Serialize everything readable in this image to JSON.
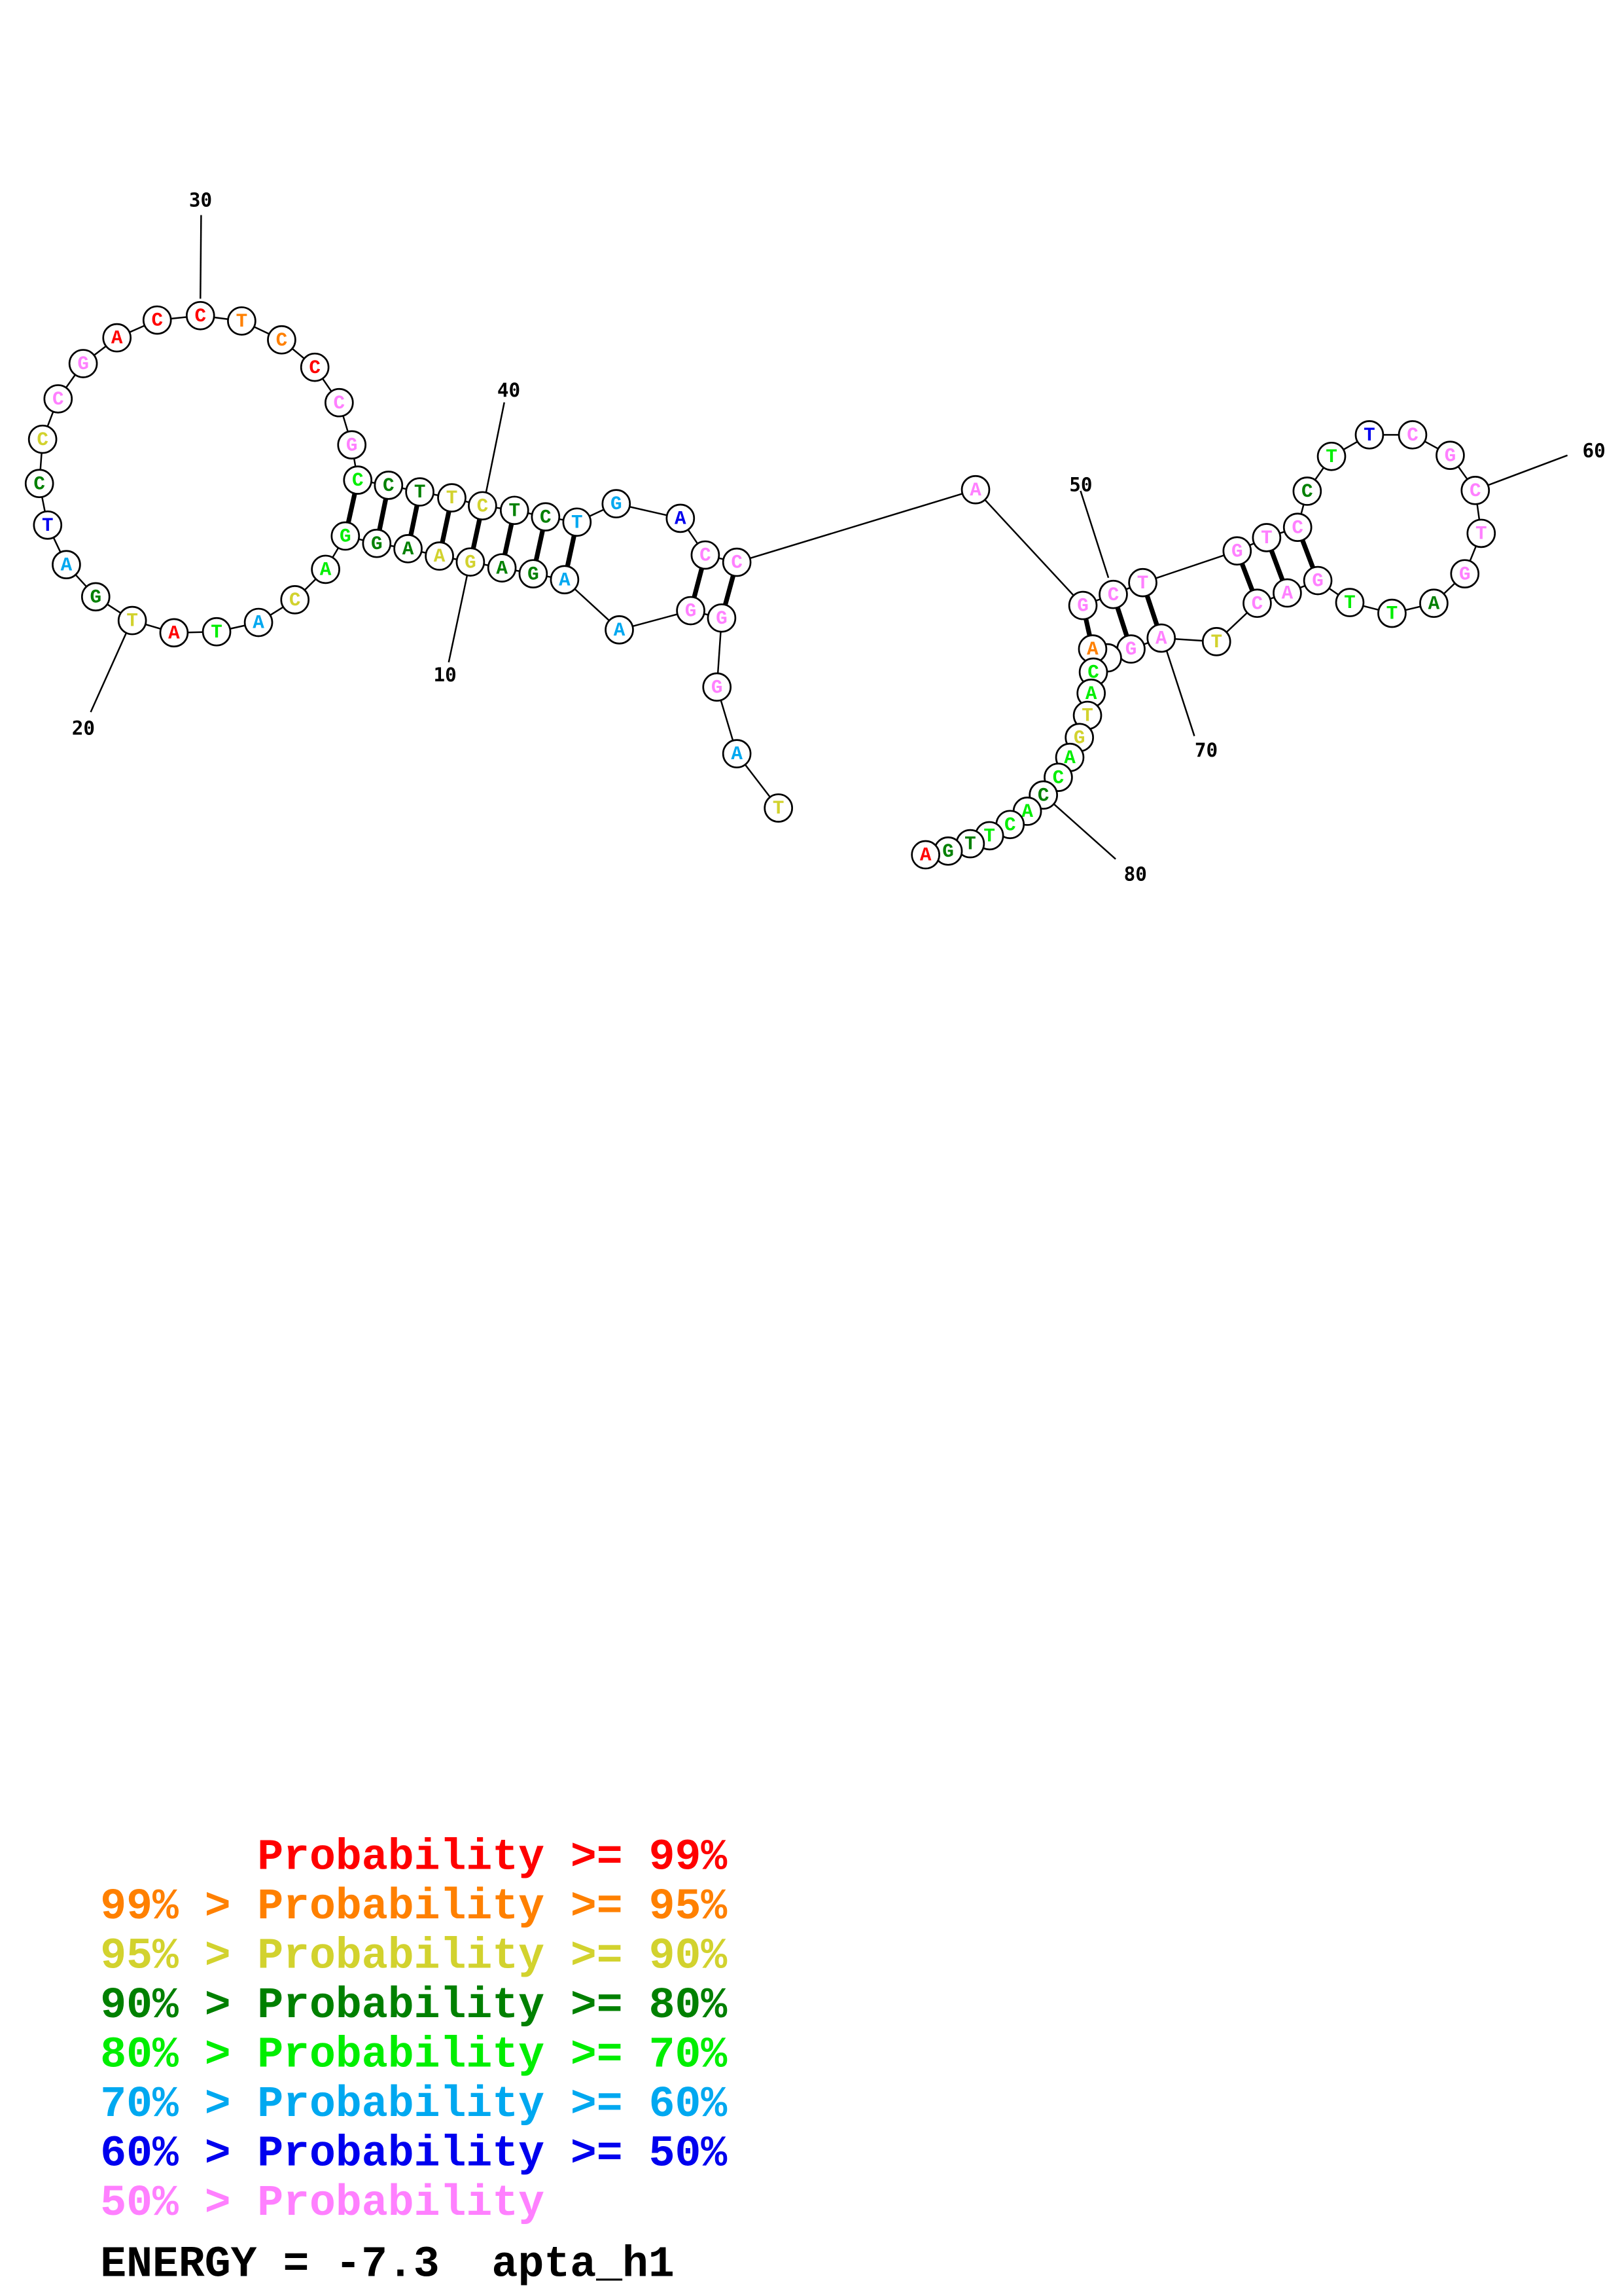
{
  "palette": [
    "#ff0000",
    "#ff8000",
    "#d2d22e",
    "#008000",
    "#00ee00",
    "#00a8f0",
    "#0000ee",
    "#ff80ff"
  ],
  "nucleotides": [
    {
      "n": 1,
      "base": "T",
      "p": 2
    },
    {
      "n": 2,
      "base": "A",
      "p": 5
    },
    {
      "n": 3,
      "base": "G",
      "p": 7
    },
    {
      "n": 4,
      "base": "G",
      "p": 7
    },
    {
      "n": 5,
      "base": "G",
      "p": 7
    },
    {
      "n": 6,
      "base": "A",
      "p": 5
    },
    {
      "n": 7,
      "base": "A",
      "p": 5
    },
    {
      "n": 8,
      "base": "G",
      "p": 3
    },
    {
      "n": 9,
      "base": "A",
      "p": 3
    },
    {
      "n": 10,
      "base": "G",
      "p": 2
    },
    {
      "n": 11,
      "base": "A",
      "p": 2
    },
    {
      "n": 12,
      "base": "A",
      "p": 3
    },
    {
      "n": 13,
      "base": "G",
      "p": 3
    },
    {
      "n": 14,
      "base": "G",
      "p": 4
    },
    {
      "n": 15,
      "base": "A",
      "p": 4
    },
    {
      "n": 16,
      "base": "C",
      "p": 2
    },
    {
      "n": 17,
      "base": "A",
      "p": 5
    },
    {
      "n": 18,
      "base": "T",
      "p": 4
    },
    {
      "n": 19,
      "base": "A",
      "p": 0
    },
    {
      "n": 20,
      "base": "T",
      "p": 2
    },
    {
      "n": 21,
      "base": "G",
      "p": 3
    },
    {
      "n": 22,
      "base": "A",
      "p": 5
    },
    {
      "n": 23,
      "base": "T",
      "p": 6
    },
    {
      "n": 24,
      "base": "C",
      "p": 3
    },
    {
      "n": 25,
      "base": "C",
      "p": 2
    },
    {
      "n": 26,
      "base": "C",
      "p": 7
    },
    {
      "n": 27,
      "base": "G",
      "p": 7
    },
    {
      "n": 28,
      "base": "A",
      "p": 0
    },
    {
      "n": 29,
      "base": "C",
      "p": 0
    },
    {
      "n": 30,
      "base": "C",
      "p": 0
    },
    {
      "n": 31,
      "base": "T",
      "p": 1
    },
    {
      "n": 32,
      "base": "C",
      "p": 1
    },
    {
      "n": 33,
      "base": "C",
      "p": 0
    },
    {
      "n": 34,
      "base": "C",
      "p": 7
    },
    {
      "n": 35,
      "base": "G",
      "p": 7
    },
    {
      "n": 36,
      "base": "C",
      "p": 4
    },
    {
      "n": 37,
      "base": "C",
      "p": 3
    },
    {
      "n": 38,
      "base": "T",
      "p": 3
    },
    {
      "n": 39,
      "base": "T",
      "p": 2
    },
    {
      "n": 40,
      "base": "C",
      "p": 2
    },
    {
      "n": 41,
      "base": "T",
      "p": 3
    },
    {
      "n": 42,
      "base": "C",
      "p": 3
    },
    {
      "n": 43,
      "base": "T",
      "p": 5
    },
    {
      "n": 44,
      "base": "G",
      "p": 5
    },
    {
      "n": 45,
      "base": "A",
      "p": 6
    },
    {
      "n": 46,
      "base": "C",
      "p": 7
    },
    {
      "n": 47,
      "base": "C",
      "p": 7
    },
    {
      "n": 48,
      "base": "A",
      "p": 7
    },
    {
      "n": 49,
      "base": "G",
      "p": 7
    },
    {
      "n": 50,
      "base": "C",
      "p": 7
    },
    {
      "n": 51,
      "base": "T",
      "p": 7
    },
    {
      "n": 52,
      "base": "G",
      "p": 7
    },
    {
      "n": 53,
      "base": "T",
      "p": 7
    },
    {
      "n": 54,
      "base": "C",
      "p": 7
    },
    {
      "n": 55,
      "base": "C",
      "p": 3
    },
    {
      "n": 56,
      "base": "T",
      "p": 4
    },
    {
      "n": 57,
      "base": "T",
      "p": 6
    },
    {
      "n": 58,
      "base": "C",
      "p": 7
    },
    {
      "n": 59,
      "base": "G",
      "p": 7
    },
    {
      "n": 60,
      "base": "C",
      "p": 7
    },
    {
      "n": 61,
      "base": "T",
      "p": 7
    },
    {
      "n": 62,
      "base": "G",
      "p": 7
    },
    {
      "n": 63,
      "base": "A",
      "p": 3
    },
    {
      "n": 64,
      "base": "T",
      "p": 4
    },
    {
      "n": 65,
      "base": "T",
      "p": 4
    },
    {
      "n": 66,
      "base": "G",
      "p": 7
    },
    {
      "n": 67,
      "base": "A",
      "p": 7
    },
    {
      "n": 68,
      "base": "C",
      "p": 7
    },
    {
      "n": 69,
      "base": "T",
      "p": 2
    },
    {
      "n": 70,
      "base": "A",
      "p": 7
    },
    {
      "n": 71,
      "base": "G",
      "p": 7
    },
    {
      "n": 72,
      "base": "",
      "p": 7
    },
    {
      "n": 73,
      "base": "A",
      "p": 1
    },
    {
      "n": 74,
      "base": "C",
      "p": 4
    },
    {
      "n": 75,
      "base": "A",
      "p": 4
    },
    {
      "n": 76,
      "base": "T",
      "p": 2
    },
    {
      "n": 77,
      "base": "G",
      "p": 2
    },
    {
      "n": 78,
      "base": "A",
      "p": 4
    },
    {
      "n": 79,
      "base": "C",
      "p": 4
    },
    {
      "n": 80,
      "base": "C",
      "p": 3
    },
    {
      "n": 81,
      "base": "A",
      "p": 4
    },
    {
      "n": 82,
      "base": "C",
      "p": 4
    },
    {
      "n": 83,
      "base": "T",
      "p": 4
    },
    {
      "n": 84,
      "base": "T",
      "p": 3
    },
    {
      "n": 85,
      "base": "G",
      "p": 3
    },
    {
      "n": 86,
      "base": "A",
      "p": 0
    }
  ],
  "pairs": [
    [
      14,
      36
    ],
    [
      13,
      37
    ],
    [
      12,
      38
    ],
    [
      11,
      39
    ],
    [
      10,
      40
    ],
    [
      9,
      41
    ],
    [
      8,
      42
    ],
    [
      7,
      43
    ],
    [
      5,
      46
    ],
    [
      4,
      47
    ],
    [
      49,
      73
    ],
    [
      50,
      71
    ],
    [
      51,
      70
    ],
    [
      52,
      68
    ],
    [
      53,
      67
    ],
    [
      54,
      66
    ]
  ],
  "position_labels": [
    "10",
    "20",
    "30",
    "40",
    "50",
    "60",
    "70",
    "80"
  ],
  "legend": [
    {
      "prefix": "",
      "text": "Probability >= 99%",
      "p": 0
    },
    {
      "prefix": "99% > ",
      "text": "Probability >= 95%",
      "p": 1
    },
    {
      "prefix": "95% > ",
      "text": "Probability >= 90%",
      "p": 2
    },
    {
      "prefix": "90% > ",
      "text": "Probability >= 80%",
      "p": 3
    },
    {
      "prefix": "80% > ",
      "text": "Probability >= 70%",
      "p": 4
    },
    {
      "prefix": "70% > ",
      "text": "Probability >= 60%",
      "p": 5
    },
    {
      "prefix": "60% > ",
      "text": "Probability >= 50%",
      "p": 6
    },
    {
      "prefix": "50% > ",
      "text": "Probability",
      "p": 7
    }
  ],
  "energy_label": "ENERGY = -7.3  apta_h1"
}
